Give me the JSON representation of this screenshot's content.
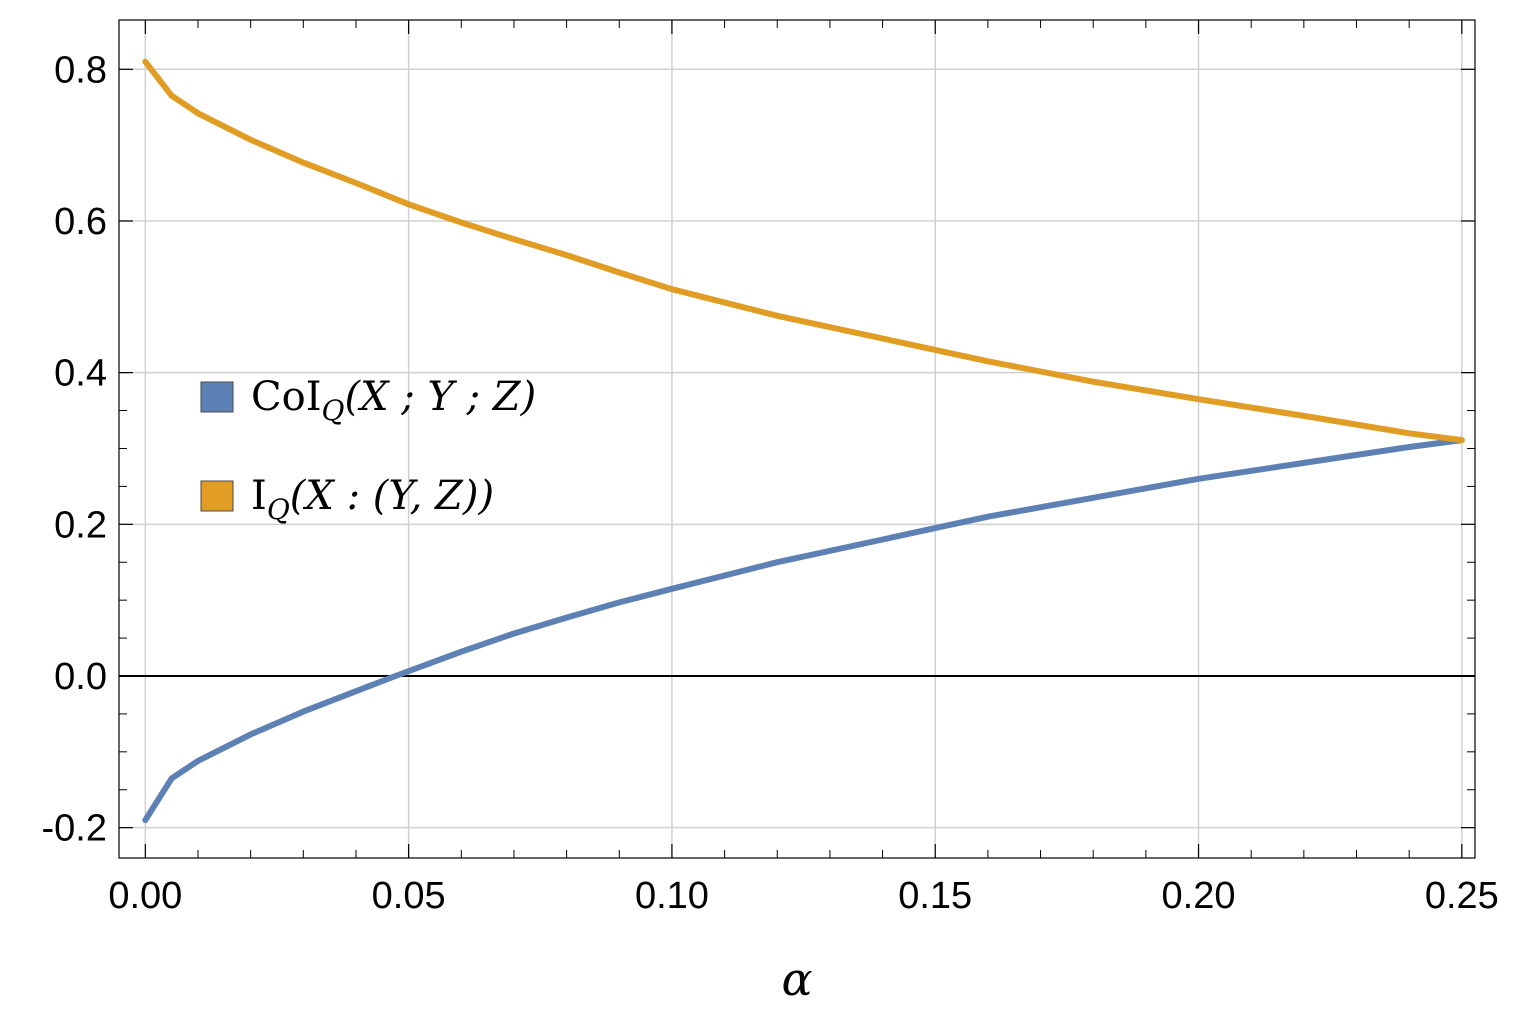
{
  "chart_data": {
    "type": "line",
    "title": "",
    "xlabel": "α",
    "ylabel": "",
    "xlim": [
      -0.005,
      0.2525
    ],
    "ylim": [
      -0.24,
      0.865
    ],
    "xticks": [
      0.0,
      0.05,
      0.1,
      0.15,
      0.2,
      0.25
    ],
    "xtick_labels": [
      "0.00",
      "0.05",
      "0.10",
      "0.15",
      "0.20",
      "0.25"
    ],
    "yticks": [
      -0.2,
      0.0,
      0.2,
      0.4,
      0.6,
      0.8
    ],
    "ytick_labels": [
      "-0.2",
      "0.0",
      "0.2",
      "0.4",
      "0.6",
      "0.8"
    ],
    "grid": true,
    "legend_position": "left-center",
    "series": [
      {
        "name": "CoI_Q(X;Y;Z)",
        "color": "#5e81b5",
        "x": [
          0.0,
          0.005,
          0.01,
          0.02,
          0.03,
          0.04,
          0.0475,
          0.06,
          0.07,
          0.08,
          0.09,
          0.1,
          0.12,
          0.14,
          0.15,
          0.16,
          0.18,
          0.2,
          0.22,
          0.24,
          0.25
        ],
        "y": [
          -0.19,
          -0.135,
          -0.112,
          -0.077,
          -0.047,
          -0.02,
          0.0,
          0.032,
          0.056,
          0.077,
          0.097,
          0.115,
          0.15,
          0.18,
          0.195,
          0.21,
          0.235,
          0.26,
          0.281,
          0.302,
          0.311
        ]
      },
      {
        "name": "I_Q(X:(Y,Z))",
        "color": "#e19c24",
        "x": [
          0.0,
          0.005,
          0.01,
          0.02,
          0.03,
          0.04,
          0.05,
          0.06,
          0.07,
          0.08,
          0.09,
          0.1,
          0.12,
          0.14,
          0.15,
          0.16,
          0.18,
          0.2,
          0.22,
          0.24,
          0.25
        ],
        "y": [
          0.81,
          0.765,
          0.742,
          0.707,
          0.677,
          0.65,
          0.622,
          0.598,
          0.576,
          0.555,
          0.532,
          0.51,
          0.475,
          0.445,
          0.43,
          0.415,
          0.388,
          0.365,
          0.343,
          0.32,
          0.311
        ]
      }
    ],
    "legend": [
      {
        "label_main": "CoI",
        "label_sub": "Q",
        "label_rest": "(X ; Y ; Z)",
        "color": "#5e81b5"
      },
      {
        "label_main": "I",
        "label_sub": "Q",
        "label_rest": "(X : (Y, Z))",
        "color": "#e19c24"
      }
    ]
  }
}
